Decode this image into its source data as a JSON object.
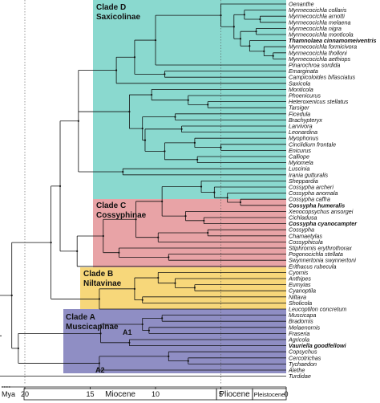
{
  "clades": [
    {
      "line1": "Clade D",
      "line2": "Saxicolinae",
      "color": "#8ad9cf"
    },
    {
      "line1": "Clade C",
      "line2": "Cossyphinae",
      "color": "#e8a3a6"
    },
    {
      "line1": "Clade B",
      "line2": "Niltavinae",
      "color": "#f7d77a"
    },
    {
      "line1": "Clade A",
      "line2": "Muscicapinae",
      "color": "#8f8ec4"
    }
  ],
  "taxa": [
    "Oenanthe",
    "Myrmecocichla collaris",
    "Myrmecocichla arnotti",
    "Myrmecocichla melaena",
    "Myrmecocichla nigra",
    "Myrmecocichla monticola",
    "Thamnolaea cinnamomeiventris",
    "Myrmecocichla formicivora",
    "Myrmecocichla tholloni",
    "Myrmecocichla aethiops",
    "Pinarochroa sordida",
    "Emarginata",
    "Campicoloides bifasciatus",
    "Saxicola",
    "Monticola",
    "Phoenicurus",
    "Heteroxenicus stellatus",
    "Tarsiger",
    "Ficedula",
    "Brachypteryx",
    "Larvivora",
    "Leonardina",
    "Myophonus",
    "Cinclidium frontale",
    "Enicurus",
    "Calliope",
    "Myiomela",
    "Luscinia",
    "Irania gutturalis",
    "Sheppardia",
    "Cossypha archeri",
    "Cossypha anomala",
    "Cossypha caffra",
    "Cossypha humeralis",
    "Xenocopsychus ansorgei",
    "Cichladusa",
    "Cossypha cyanocampter",
    "Cossypha",
    "Chamaetylas",
    "Cossyphicula",
    "Stiphrornis erythrothorax",
    "Pogonocichla stellata",
    "Swynnertonia swynnertoni",
    "Erithacus rubecula",
    "Cyornis",
    "Anthipes",
    "Eumyias",
    "Cyanoptila",
    "Niltava",
    "Sholicola",
    "Leucoptilon concretum",
    "Muscicapa",
    "Bradornis",
    "Melaenornis",
    "Fraseria",
    "Agricola",
    "Vauriella goodfellowi",
    "Copsychus",
    "Cercotrichas",
    "Tychaedon",
    "Alethe",
    "Turdidae"
  ],
  "bold_taxa": [
    "Thamnolaea cinnamomeiventris",
    "Cossypha humeralis",
    "Cossypha cyanocampter",
    "Vauriella goodfellowi"
  ],
  "node_labels": {
    "a1": "A1",
    "a2": "A2"
  },
  "axis": {
    "unit": "Mya",
    "ticks": [
      {
        "value": 20,
        "label": "20"
      },
      {
        "value": 15,
        "label": "15"
      },
      {
        "value": 10,
        "label": "10"
      },
      {
        "value": 5,
        "label": "5"
      },
      {
        "value": 0,
        "label": "0"
      }
    ]
  },
  "epochs": [
    {
      "name": "Miocene",
      "start": 23.0,
      "end": 5.33
    },
    {
      "name": "Pliocene",
      "start": 5.33,
      "end": 2.58
    },
    {
      "name": "Pleistocene",
      "start": 2.58,
      "end": 0
    }
  ],
  "colors": {
    "line": "#111111",
    "guide": "#555555"
  }
}
